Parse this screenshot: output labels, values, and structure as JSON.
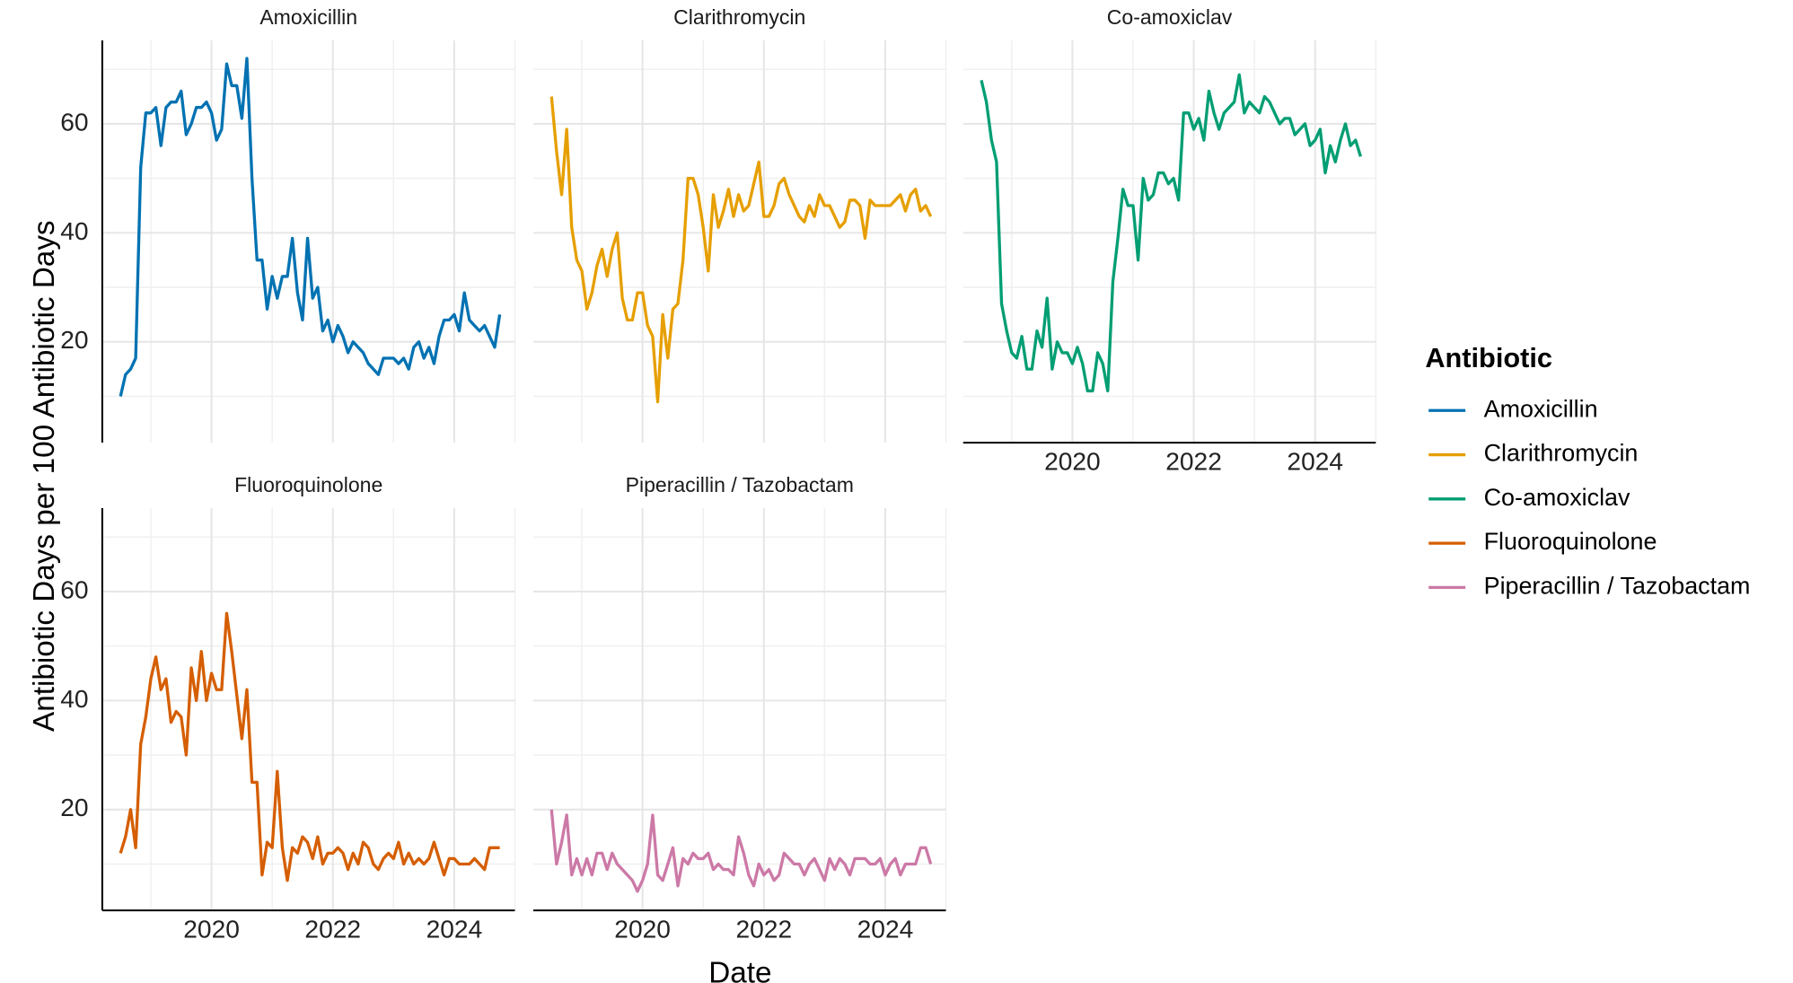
{
  "chart_data": {
    "type": "line",
    "ylabel": "Antibiotic Days per 100 Antibiotic Days",
    "xlabel": "Date",
    "legend_title": "Antibiotic",
    "legend": "right",
    "grid": true,
    "xlim": [
      2018.2,
      2025.0
    ],
    "xticks": [
      2020,
      2022,
      2024
    ],
    "ylim": [
      1.5,
      75.3
    ],
    "yticks": [
      20,
      40,
      60
    ],
    "x": [
      2018.5,
      2018.583,
      2018.667,
      2018.75,
      2018.833,
      2018.917,
      2019,
      2019.083,
      2019.167,
      2019.25,
      2019.333,
      2019.417,
      2019.5,
      2019.583,
      2019.667,
      2019.75,
      2019.833,
      2019.917,
      2020,
      2020.083,
      2020.167,
      2020.25,
      2020.333,
      2020.417,
      2020.5,
      2020.583,
      2020.667,
      2020.75,
      2020.833,
      2020.917,
      2021,
      2021.083,
      2021.167,
      2021.25,
      2021.333,
      2021.417,
      2021.5,
      2021.583,
      2021.667,
      2021.75,
      2021.833,
      2021.917,
      2022,
      2022.083,
      2022.167,
      2022.25,
      2022.333,
      2022.417,
      2022.5,
      2022.583,
      2022.667,
      2022.75,
      2022.833,
      2022.917,
      2023,
      2023.083,
      2023.167,
      2023.25,
      2023.333,
      2023.417,
      2023.5,
      2023.583,
      2023.667,
      2023.75,
      2023.833,
      2023.917,
      2024,
      2024.083,
      2024.167,
      2024.25,
      2024.333,
      2024.417,
      2024.5,
      2024.583,
      2024.667,
      2024.75
    ],
    "series": [
      {
        "name": "Amoxicillin",
        "color": "#0072B2",
        "values": [
          10,
          14,
          15,
          17,
          52,
          62,
          62,
          63,
          56,
          63,
          64,
          64,
          66,
          58,
          60,
          63,
          63,
          64,
          62,
          57,
          59,
          71,
          67,
          67,
          61,
          72,
          50,
          35,
          35,
          26,
          32,
          28,
          32,
          32,
          39,
          29,
          24,
          39,
          28,
          30,
          22,
          24,
          20,
          23,
          21,
          18,
          20,
          19,
          18,
          16,
          15,
          14,
          17,
          17,
          17,
          16,
          17,
          15,
          19,
          20,
          17,
          19,
          16,
          21,
          24,
          24,
          25,
          22,
          29,
          24,
          23,
          22,
          23,
          21,
          19,
          25
        ]
      },
      {
        "name": "Clarithromycin",
        "color": "#E69F00",
        "values": [
          65,
          55,
          47,
          59,
          41,
          35,
          33,
          26,
          29,
          34,
          37,
          32,
          37,
          40,
          28,
          24,
          24,
          29,
          29,
          23,
          21,
          9,
          25,
          17,
          26,
          27,
          35,
          50,
          50,
          47,
          41,
          33,
          47,
          41,
          44,
          48,
          43,
          47,
          44,
          45,
          49,
          53,
          43,
          43,
          45,
          49,
          50,
          47,
          45,
          43,
          42,
          45,
          43,
          47,
          45,
          45,
          43,
          41,
          42,
          46,
          46,
          45,
          39,
          46,
          45,
          45,
          45,
          45,
          46,
          47,
          44,
          47,
          48,
          44,
          45,
          43
        ]
      },
      {
        "name": "Co-amoxiclav",
        "color": "#009E73",
        "values": [
          68,
          64,
          57,
          53,
          27,
          22,
          18,
          17,
          21,
          15,
          15,
          22,
          19,
          28,
          15,
          20,
          18,
          18,
          16,
          19,
          16,
          11,
          11,
          18,
          16,
          11,
          31,
          39,
          48,
          45,
          45,
          35,
          50,
          46,
          47,
          51,
          51,
          49,
          50,
          46,
          62,
          62,
          59,
          61,
          57,
          66,
          62,
          59,
          62,
          63,
          64,
          69,
          62,
          64,
          63,
          62,
          65,
          64,
          62,
          60,
          61,
          61,
          58,
          59,
          60,
          56,
          57,
          59,
          51,
          56,
          53,
          57,
          60,
          56,
          57,
          54
        ]
      },
      {
        "name": "Fluoroquinolone",
        "color": "#D55E00",
        "values": [
          12,
          15,
          20,
          13,
          32,
          37,
          44,
          48,
          42,
          44,
          36,
          38,
          37,
          30,
          46,
          40,
          49,
          40,
          45,
          42,
          42,
          56,
          49,
          41,
          33,
          42,
          25,
          25,
          8,
          14,
          13,
          27,
          13,
          7,
          13,
          12,
          15,
          14,
          11,
          15,
          10,
          12,
          12,
          13,
          12,
          9,
          12,
          10,
          14,
          13,
          10,
          9,
          11,
          12,
          11,
          14,
          10,
          12,
          10,
          11,
          10,
          11,
          14,
          11,
          8,
          11,
          11,
          10,
          10,
          10,
          11,
          10,
          9,
          13,
          13,
          13
        ]
      },
      {
        "name": "Piperacillin / Tazobactam",
        "color": "#CC79A7",
        "values": [
          20,
          10,
          14,
          19,
          8,
          11,
          8,
          11,
          8,
          12,
          12,
          9,
          12,
          10,
          9,
          8,
          7,
          5,
          7,
          10,
          19,
          8,
          7,
          10,
          13,
          6,
          11,
          10,
          12,
          11,
          11,
          12,
          9,
          10,
          9,
          9,
          8,
          15,
          12,
          8,
          6,
          10,
          8,
          9,
          7,
          8,
          12,
          11,
          10,
          10,
          8,
          10,
          11,
          9,
          7,
          11,
          9,
          11,
          10,
          8,
          11,
          11,
          11,
          10,
          10,
          11,
          8,
          10,
          11,
          8,
          10,
          10,
          10,
          13,
          13,
          10
        ]
      }
    ]
  }
}
